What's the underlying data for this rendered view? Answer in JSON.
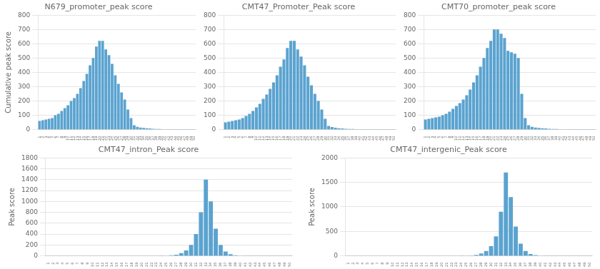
{
  "chart_data": [
    {
      "type": "bar",
      "title": "N679_promoter_peak score",
      "ylabel": "Cumulative peak score",
      "categories": [
        "1",
        "2",
        "3",
        "4",
        "5",
        "6",
        "7",
        "8",
        "9",
        "10",
        "11",
        "12",
        "13",
        "14",
        "15",
        "16",
        "17",
        "18",
        "19",
        "20",
        "21",
        "22",
        "23",
        "24",
        "25",
        "26",
        "27",
        "28",
        "29",
        "30",
        "31",
        "32",
        "33",
        "34",
        "35",
        "36",
        "37",
        "38",
        "39",
        "40",
        "41",
        "42",
        "43",
        "44",
        "45",
        "46",
        "47",
        "48",
        "49",
        "50"
      ],
      "values": [
        60,
        65,
        70,
        75,
        80,
        100,
        110,
        130,
        150,
        170,
        200,
        220,
        250,
        290,
        340,
        390,
        450,
        500,
        580,
        620,
        620,
        560,
        520,
        460,
        380,
        320,
        260,
        210,
        140,
        80,
        30,
        20,
        15,
        12,
        10,
        8,
        6,
        5,
        4,
        3,
        2,
        1,
        1,
        1,
        1,
        1,
        1,
        1,
        1,
        1
      ],
      "color": "#5BA3D0",
      "ylim": [
        0,
        800
      ],
      "yticks": [
        0,
        100,
        200,
        300,
        400,
        500,
        600,
        700,
        800
      ],
      "grid": true
    },
    {
      "type": "bar",
      "title": "CMT47_Promoter_Peak score",
      "categories": [
        "1",
        "2",
        "3",
        "4",
        "5",
        "6",
        "7",
        "8",
        "9",
        "10",
        "11",
        "12",
        "13",
        "14",
        "15",
        "16",
        "17",
        "18",
        "19",
        "20",
        "21",
        "22",
        "23",
        "24",
        "25",
        "26",
        "27",
        "28",
        "29",
        "30",
        "31",
        "32",
        "33",
        "34",
        "35",
        "36",
        "37",
        "38",
        "39",
        "40",
        "41",
        "42",
        "43",
        "44",
        "45",
        "46",
        "47",
        "48",
        "49",
        "50"
      ],
      "values": [
        50,
        55,
        60,
        65,
        70,
        80,
        95,
        110,
        130,
        155,
        180,
        215,
        245,
        285,
        330,
        380,
        440,
        490,
        570,
        620,
        620,
        560,
        510,
        450,
        370,
        310,
        250,
        200,
        140,
        75,
        25,
        18,
        13,
        10,
        8,
        6,
        5,
        4,
        3,
        2,
        1,
        1,
        1,
        1,
        1,
        1,
        1,
        1,
        1,
        1
      ],
      "color": "#5BA3D0",
      "ylim": [
        0,
        800
      ],
      "yticks": [
        0,
        100,
        200,
        300,
        400,
        500,
        600,
        700,
        800
      ],
      "grid": true
    },
    {
      "type": "bar",
      "title": "CMT70_promoter_peak score",
      "categories": [
        "1",
        "2",
        "3",
        "4",
        "5",
        "6",
        "7",
        "8",
        "9",
        "10",
        "11",
        "12",
        "13",
        "14",
        "15",
        "16",
        "17",
        "18",
        "19",
        "20",
        "21",
        "22",
        "23",
        "24",
        "25",
        "26",
        "27",
        "28",
        "29",
        "30",
        "31",
        "32",
        "33",
        "34",
        "35",
        "36",
        "37",
        "38",
        "39",
        "40",
        "41",
        "42",
        "43",
        "44",
        "45",
        "46",
        "47",
        "48",
        "49",
        "50"
      ],
      "values": [
        70,
        75,
        80,
        85,
        90,
        100,
        110,
        125,
        145,
        165,
        185,
        210,
        240,
        280,
        330,
        380,
        440,
        500,
        570,
        620,
        700,
        700,
        670,
        640,
        550,
        540,
        530,
        500,
        250,
        80,
        30,
        20,
        15,
        12,
        10,
        8,
        6,
        5,
        4,
        3,
        2,
        1,
        1,
        1,
        1,
        1,
        1,
        1,
        1,
        1
      ],
      "color": "#5BA3D0",
      "ylim": [
        0,
        800
      ],
      "yticks": [
        0,
        100,
        200,
        300,
        400,
        500,
        600,
        700,
        800
      ],
      "grid": true
    },
    {
      "type": "bar",
      "title": "CMT47_intron_Peak score",
      "ylabel": "Peak score",
      "categories": [
        "1",
        "2",
        "3",
        "4",
        "5",
        "6",
        "7",
        "8",
        "9",
        "10",
        "11",
        "12",
        "13",
        "14",
        "15",
        "16",
        "17",
        "18",
        "19",
        "20",
        "21",
        "22",
        "23",
        "24",
        "25",
        "26",
        "27",
        "28",
        "29",
        "30",
        "31",
        "32",
        "33",
        "34",
        "35",
        "36",
        "37",
        "38",
        "39",
        "40",
        "41",
        "42",
        "43",
        "44",
        "45",
        "46",
        "47",
        "48",
        "49",
        "50"
      ],
      "values": [
        0,
        0,
        0,
        0,
        0,
        0,
        0,
        0,
        0,
        0,
        0,
        0,
        0,
        0,
        0,
        0,
        0,
        0,
        0,
        0,
        0,
        0,
        0,
        2,
        5,
        10,
        20,
        50,
        100,
        200,
        400,
        800,
        1400,
        1000,
        500,
        200,
        80,
        30,
        10,
        5,
        3,
        2,
        1,
        1,
        1,
        1,
        1,
        1,
        1,
        1
      ],
      "color": "#5BA3D0",
      "ylim": [
        0,
        1800
      ],
      "yticks": [
        0,
        200,
        400,
        600,
        800,
        1000,
        1200,
        1400,
        1600,
        1800
      ],
      "grid": true
    },
    {
      "type": "bar",
      "title": "CMT47_intergenic_Peak score",
      "ylabel": "Peak score",
      "categories": [
        "1",
        "2",
        "3",
        "4",
        "5",
        "6",
        "7",
        "8",
        "9",
        "10",
        "11",
        "12",
        "13",
        "14",
        "15",
        "16",
        "17",
        "18",
        "19",
        "20",
        "21",
        "22",
        "23",
        "24",
        "25",
        "26",
        "27",
        "28",
        "29",
        "30",
        "31",
        "32",
        "33",
        "34",
        "35",
        "36",
        "37",
        "38",
        "39",
        "40",
        "41",
        "42",
        "43",
        "44",
        "45",
        "46",
        "47",
        "48",
        "49",
        "50"
      ],
      "values": [
        0,
        0,
        0,
        0,
        0,
        0,
        0,
        0,
        0,
        0,
        0,
        0,
        0,
        0,
        0,
        0,
        0,
        0,
        0,
        0,
        0,
        0,
        0,
        2,
        5,
        10,
        20,
        50,
        100,
        200,
        400,
        900,
        1700,
        1200,
        600,
        250,
        100,
        40,
        15,
        6,
        3,
        2,
        1,
        1,
        1,
        1,
        1,
        1,
        1,
        1
      ],
      "color": "#5BA3D0",
      "ylim": [
        0,
        2000
      ],
      "yticks": [
        0,
        500,
        1000,
        1500,
        2000
      ],
      "grid": true
    }
  ]
}
